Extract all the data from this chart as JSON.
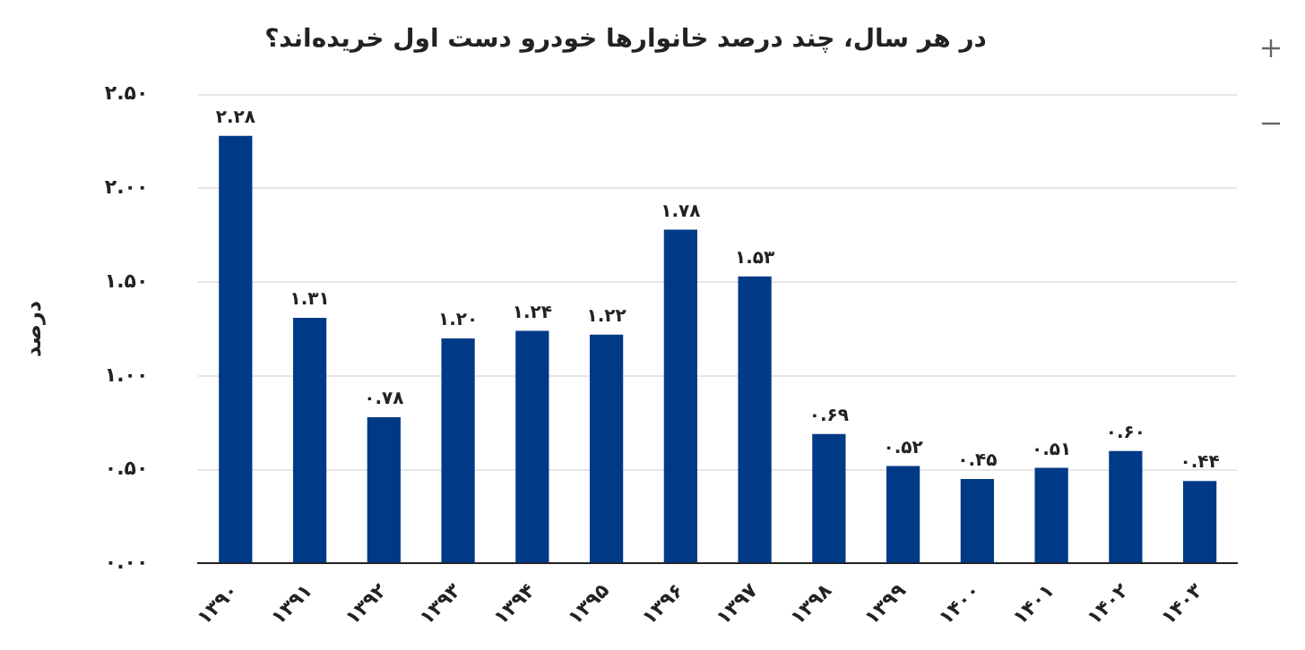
{
  "chart_data": {
    "type": "bar",
    "title": "در هر سال، چند درصد خانوارها خودرو دست اول خریده‌اند؟",
    "ylabel": "درصد",
    "categories": [
      "۱۳۹۰",
      "۱۳۹۱",
      "۱۳۹۲",
      "۱۳۹۳",
      "۱۳۹۴",
      "۱۳۹۵",
      "۱۳۹۶",
      "۱۳۹۷",
      "۱۳۹۸",
      "۱۳۹۹",
      "۱۴۰۰",
      "۱۴۰۱",
      "۱۴۰۲",
      "۱۴۰۳"
    ],
    "values": [
      2.28,
      1.31,
      0.78,
      1.2,
      1.24,
      1.22,
      1.78,
      1.53,
      0.69,
      0.52,
      0.45,
      0.51,
      0.6,
      0.44
    ],
    "value_labels": [
      "۲.۲۸",
      "۱.۳۱",
      "۰.۷۸",
      "۱.۲۰",
      "۱.۲۴",
      "۱.۲۲",
      "۱.۷۸",
      "۱.۵۳",
      "۰.۶۹",
      "۰.۵۲",
      "۰.۴۵",
      "۰.۵۱",
      "۰.۶۰",
      "۰.۴۴"
    ],
    "color": "#003a87",
    "ylim": [
      0,
      2.5
    ],
    "yticks": [
      {
        "value": 0,
        "label": "۰.۰۰"
      },
      {
        "value": 0.5,
        "label": "۰.۵۰"
      },
      {
        "value": 1,
        "label": "۱.۰۰"
      },
      {
        "value": 1.5,
        "label": "۱.۵۰"
      },
      {
        "value": 2,
        "label": "۲.۰۰"
      },
      {
        "value": 2.5,
        "label": "۲.۵۰"
      }
    ],
    "grid": "y",
    "legend": false
  }
}
